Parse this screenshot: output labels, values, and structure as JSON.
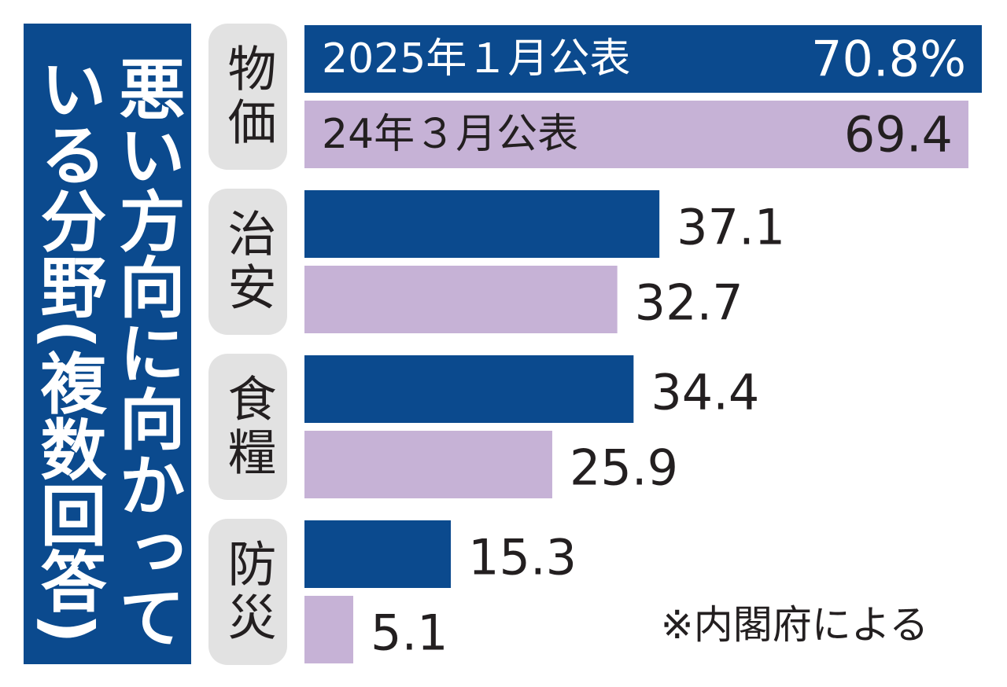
{
  "chart_data": {
    "type": "bar",
    "title": "悪い方向に向かっている分野(複数回答)",
    "categories": [
      "物価",
      "治安",
      "食糧",
      "防災"
    ],
    "series": [
      {
        "name": "2025年１月公表",
        "color": "#0b4a8e",
        "values": [
          70.8,
          37.1,
          34.4,
          15.3
        ],
        "value_labels": [
          "70.8%",
          "37.1",
          "34.4",
          "15.3"
        ]
      },
      {
        "name": "24年３月公表",
        "color": "#c6b2d6",
        "values": [
          69.4,
          32.7,
          25.9,
          5.1
        ]
      }
    ],
    "annotation": "※内閣府による"
  }
}
